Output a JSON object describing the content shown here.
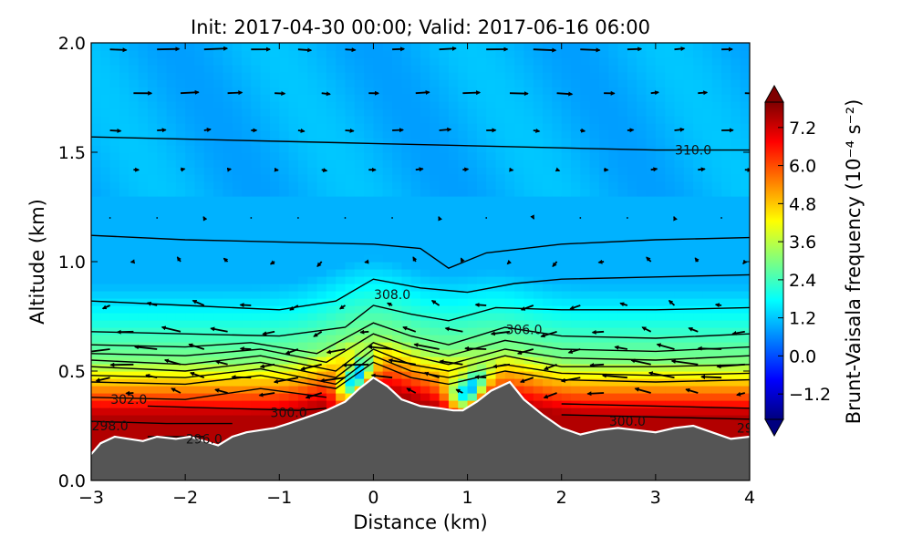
{
  "chart_data": {
    "type": "heatmap",
    "title": "Init: 2017-04-30 00:00; Valid: 2017-06-16 06:00",
    "xlabel": "Distance (km)",
    "ylabel": "Altitude (km)",
    "xlim": [
      -3,
      4
    ],
    "ylim": [
      0.0,
      2.0
    ],
    "x_ticks": [
      "−3",
      "−2",
      "−1",
      "0",
      "1",
      "2",
      "3",
      "4"
    ],
    "x_tick_values": [
      -3,
      -2,
      -1,
      0,
      1,
      2,
      3,
      4
    ],
    "y_ticks": [
      "0.0",
      "0.5",
      "1.0",
      "1.5",
      "2.0"
    ],
    "y_tick_values": [
      0.0,
      0.5,
      1.0,
      1.5,
      2.0
    ],
    "colorbar": {
      "label": "Brunt-Vaisala frequency (10⁻⁴ s⁻²)",
      "min": -2.0,
      "max": 8.0,
      "extend": "both",
      "ticks": [
        "7.2",
        "6.0",
        "4.8",
        "3.6",
        "2.4",
        "1.2",
        "0.0",
        "−1.2"
      ],
      "tick_values": [
        7.2,
        6.0,
        4.8,
        3.6,
        2.4,
        1.2,
        0.0,
        -1.2
      ],
      "colormap": [
        "#00007f",
        "#0000ff",
        "#007fff",
        "#00ffff",
        "#7fff7f",
        "#ffff00",
        "#ff7f00",
        "#ff0000",
        "#7f0000"
      ]
    },
    "terrain": {
      "fill_color": "#555555",
      "outline_color": "#ffffff",
      "x": [
        -3.0,
        -2.9,
        -2.75,
        -2.6,
        -2.45,
        -2.3,
        -2.1,
        -1.95,
        -1.8,
        -1.65,
        -1.5,
        -1.35,
        -1.2,
        -1.05,
        -0.9,
        -0.7,
        -0.5,
        -0.3,
        -0.15,
        0.0,
        0.15,
        0.3,
        0.5,
        0.7,
        0.85,
        0.95,
        1.1,
        1.25,
        1.45,
        1.6,
        1.8,
        2.0,
        2.2,
        2.4,
        2.6,
        2.8,
        3.0,
        3.2,
        3.4,
        3.6,
        3.8,
        4.0
      ],
      "z": [
        0.12,
        0.17,
        0.2,
        0.19,
        0.18,
        0.2,
        0.19,
        0.2,
        0.18,
        0.16,
        0.2,
        0.22,
        0.23,
        0.24,
        0.26,
        0.29,
        0.32,
        0.36,
        0.42,
        0.47,
        0.43,
        0.37,
        0.34,
        0.33,
        0.32,
        0.32,
        0.36,
        0.41,
        0.45,
        0.37,
        0.3,
        0.24,
        0.21,
        0.23,
        0.24,
        0.23,
        0.22,
        0.24,
        0.25,
        0.22,
        0.19,
        0.2
      ]
    },
    "field": {
      "description_of_layers": "value by altitude above terrain",
      "stable_layer_top_km": 0.55,
      "values_low": 7.5,
      "values_mid": 3.0,
      "values_upper": 1.0
    },
    "contours": {
      "line_color": "#000000",
      "levels": [
        {
          "label": "310.0",
          "x": [
            -3,
            -2,
            -1,
            0,
            1,
            2,
            3,
            4
          ],
          "z": [
            1.57,
            1.56,
            1.55,
            1.54,
            1.53,
            1.52,
            1.51,
            1.51
          ]
        },
        {
          "label": "",
          "x": [
            -3,
            -2,
            -1,
            0,
            0.5,
            0.8,
            1.2,
            2,
            3,
            4
          ],
          "z": [
            1.12,
            1.1,
            1.09,
            1.08,
            1.06,
            0.97,
            1.04,
            1.08,
            1.1,
            1.11
          ]
        },
        {
          "label": "",
          "x": [
            -3,
            -2,
            -1,
            -0.4,
            0,
            0.5,
            1,
            1.5,
            2,
            3,
            4
          ],
          "z": [
            0.82,
            0.8,
            0.78,
            0.82,
            0.92,
            0.88,
            0.86,
            0.9,
            0.92,
            0.93,
            0.94
          ]
        },
        {
          "label": "308.0",
          "x": [
            -3,
            -2,
            -1,
            -0.3,
            0,
            0.4,
            0.8,
            1.3,
            2,
            3,
            4
          ],
          "z": [
            0.68,
            0.67,
            0.66,
            0.7,
            0.8,
            0.76,
            0.73,
            0.79,
            0.78,
            0.78,
            0.79
          ]
        },
        {
          "label": "",
          "x": [
            -3,
            -2,
            -1.3,
            -0.6,
            0,
            0.4,
            0.8,
            1.4,
            2,
            3,
            4
          ],
          "z": [
            0.62,
            0.61,
            0.63,
            0.58,
            0.72,
            0.66,
            0.62,
            0.7,
            0.66,
            0.65,
            0.67
          ]
        },
        {
          "label": "306.0",
          "x": [
            -3,
            -2,
            -1.2,
            -0.5,
            0,
            0.4,
            0.8,
            1.4,
            2,
            3,
            4
          ],
          "z": [
            0.58,
            0.57,
            0.6,
            0.54,
            0.67,
            0.61,
            0.57,
            0.64,
            0.6,
            0.59,
            0.61
          ]
        },
        {
          "label": "",
          "x": [
            -3,
            -2,
            -1.2,
            -0.4,
            0,
            0.4,
            0.8,
            1.4,
            2,
            3,
            4
          ],
          "z": [
            0.55,
            0.53,
            0.57,
            0.5,
            0.63,
            0.57,
            0.53,
            0.6,
            0.56,
            0.55,
            0.57
          ]
        },
        {
          "label": "",
          "x": [
            -3,
            -2,
            -1.2,
            -0.4,
            0,
            0.4,
            0.8,
            1.4,
            2,
            3,
            4
          ],
          "z": [
            0.52,
            0.5,
            0.54,
            0.47,
            0.6,
            0.53,
            0.5,
            0.57,
            0.52,
            0.52,
            0.53
          ]
        },
        {
          "label": "",
          "x": [
            -3,
            -2,
            -1.2,
            -0.4,
            0,
            0.4,
            0.8,
            1.4,
            2,
            3,
            4
          ],
          "z": [
            0.48,
            0.47,
            0.51,
            0.44,
            0.57,
            0.5,
            0.47,
            0.53,
            0.49,
            0.48,
            0.49
          ]
        },
        {
          "label": "",
          "x": [
            -3,
            -2,
            -1.2,
            -0.4,
            0,
            0.4,
            0.8,
            1.4,
            2,
            3,
            4
          ],
          "z": [
            0.45,
            0.44,
            0.48,
            0.42,
            0.54,
            0.47,
            0.44,
            0.5,
            0.46,
            0.45,
            0.46
          ]
        },
        {
          "label": "302.0",
          "x": [
            -3,
            -2,
            -1.2,
            -0.5
          ],
          "z": [
            0.38,
            0.37,
            0.42,
            0.38
          ]
        },
        {
          "label": "300.0",
          "x": [
            -2.4,
            -1.6,
            -0.8,
            -0.5
          ],
          "z": [
            0.34,
            0.33,
            0.32,
            0.33
          ]
        },
        {
          "label": "298.0",
          "x": [
            -3,
            -2.2,
            -1.5
          ],
          "z": [
            0.27,
            0.26,
            0.26
          ]
        },
        {
          "label": "296.0",
          "x": [
            -2.4,
            -1.8
          ],
          "z": [
            0.2,
            0.2
          ]
        },
        {
          "label": "300.0",
          "x": [
            2.0,
            3.0,
            4.0
          ],
          "z": [
            0.3,
            0.29,
            0.28
          ]
        },
        {
          "label": "",
          "x": [
            2.0,
            3.0,
            4.0
          ],
          "z": [
            0.35,
            0.34,
            0.33
          ]
        }
      ],
      "label_positions": [
        {
          "text": "310.0",
          "x": 3.4,
          "z": 1.51
        },
        {
          "text": "308.0",
          "x": 0.2,
          "z": 0.85
        },
        {
          "text": "306.0",
          "x": 1.6,
          "z": 0.69
        },
        {
          "text": "302.0",
          "x": -2.6,
          "z": 0.37
        },
        {
          "text": "300.0",
          "x": -0.9,
          "z": 0.31
        },
        {
          "text": "298.0",
          "x": -2.8,
          "z": 0.25
        },
        {
          "text": "296.0",
          "x": -1.8,
          "z": 0.19
        },
        {
          "text": "300.0",
          "x": 2.7,
          "z": 0.27
        },
        {
          "text": "29",
          "x": 3.95,
          "z": 0.24
        }
      ]
    },
    "wind_vectors": {
      "color": "#000000",
      "rows": [
        {
          "z": 1.97,
          "u": 0.5
        },
        {
          "z": 1.77,
          "u": 0.4
        },
        {
          "z": 1.6,
          "u": 0.25
        },
        {
          "z": 1.42,
          "u": 0.15
        },
        {
          "z": 1.2,
          "u": 0.0
        },
        {
          "z": 1.0,
          "u": -0.1
        },
        {
          "z": 0.8,
          "u": -0.25
        },
        {
          "z": 0.68,
          "u": -0.4
        },
        {
          "z": 0.6,
          "u": -0.55
        },
        {
          "z": 0.53,
          "u": -0.6
        },
        {
          "z": 0.47,
          "u": -0.55
        },
        {
          "z": 0.4,
          "u": -0.35
        }
      ]
    }
  }
}
